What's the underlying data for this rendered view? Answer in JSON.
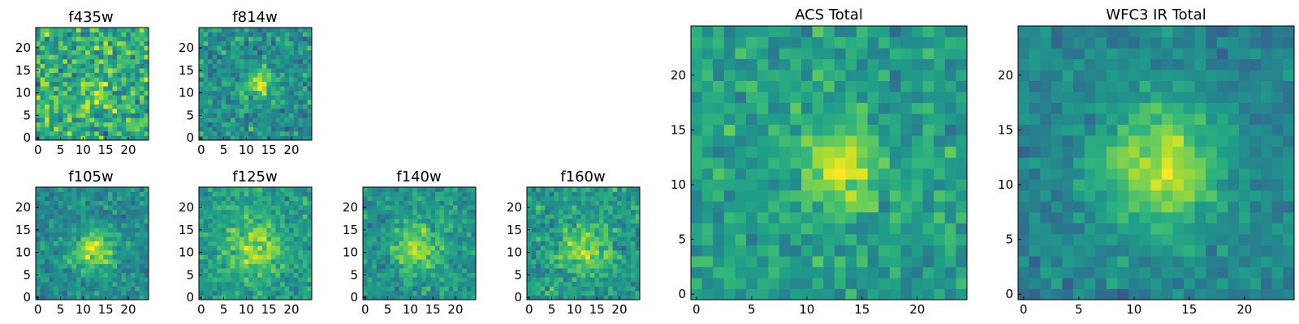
{
  "chart_data": [
    {
      "type": "heatmap",
      "title": "f435w",
      "x_ticks": [
        0,
        5,
        10,
        15,
        20
      ],
      "y_ticks": [
        0,
        5,
        10,
        15,
        20
      ],
      "xlim": [
        0,
        25
      ],
      "ylim": [
        0,
        25
      ],
      "grid_size": 25,
      "peak": [
        13.5,
        11
      ],
      "sigma": 2.5,
      "amplitude": 0.15,
      "noise": 0.28,
      "base": 0.62,
      "seed": 11,
      "colormap": "viridis",
      "grid": false
    },
    {
      "type": "heatmap",
      "title": "f814w",
      "x_ticks": [
        0,
        5,
        10,
        15,
        20
      ],
      "y_ticks": [
        0,
        5,
        10,
        15,
        20
      ],
      "xlim": [
        0,
        25
      ],
      "ylim": [
        0,
        25
      ],
      "grid_size": 25,
      "peak": [
        13,
        12
      ],
      "sigma": 2.3,
      "amplitude": 0.35,
      "noise": 0.2,
      "base": 0.5,
      "seed": 23,
      "colormap": "viridis",
      "grid": false
    },
    {
      "type": "heatmap",
      "title": "f105w",
      "x_ticks": [
        0,
        5,
        10,
        15,
        20
      ],
      "y_ticks": [
        0,
        5,
        10,
        15,
        20
      ],
      "xlim": [
        0,
        25
      ],
      "ylim": [
        0,
        25
      ],
      "grid_size": 25,
      "peak": [
        12.5,
        10.5
      ],
      "sigma": 3.2,
      "amplitude": 0.4,
      "noise": 0.16,
      "base": 0.48,
      "seed": 37,
      "colormap": "viridis",
      "grid": false
    },
    {
      "type": "heatmap",
      "title": "f125w",
      "x_ticks": [
        0,
        5,
        10,
        15,
        20
      ],
      "y_ticks": [
        0,
        5,
        10,
        15,
        20
      ],
      "xlim": [
        0,
        25
      ],
      "ylim": [
        0,
        25
      ],
      "grid_size": 25,
      "peak": [
        12,
        11
      ],
      "sigma": 4.2,
      "amplitude": 0.3,
      "noise": 0.16,
      "base": 0.55,
      "seed": 41,
      "colormap": "viridis",
      "grid": false
    },
    {
      "type": "heatmap",
      "title": "f140w",
      "x_ticks": [
        0,
        5,
        10,
        15,
        20
      ],
      "y_ticks": [
        0,
        5,
        10,
        15,
        20
      ],
      "xlim": [
        0,
        25
      ],
      "ylim": [
        0,
        25
      ],
      "grid_size": 25,
      "peak": [
        11.5,
        11
      ],
      "sigma": 3.5,
      "amplitude": 0.35,
      "noise": 0.16,
      "base": 0.52,
      "seed": 53,
      "colormap": "viridis",
      "grid": false
    },
    {
      "type": "heatmap",
      "title": "f160w",
      "x_ticks": [
        0,
        5,
        10,
        15,
        20
      ],
      "y_ticks": [
        0,
        5,
        10,
        15,
        20
      ],
      "xlim": [
        0,
        25
      ],
      "ylim": [
        0,
        25
      ],
      "grid_size": 25,
      "peak": [
        12,
        11
      ],
      "sigma": 3.8,
      "amplitude": 0.3,
      "noise": 0.18,
      "base": 0.54,
      "seed": 67,
      "colormap": "viridis",
      "grid": false
    },
    {
      "type": "heatmap",
      "title": "ACS Total",
      "x_ticks": [
        0,
        5,
        10,
        15,
        20
      ],
      "y_ticks": [
        0,
        5,
        10,
        15,
        20
      ],
      "xlim": [
        0,
        25
      ],
      "ylim": [
        0,
        25
      ],
      "grid_size": 25,
      "peak": [
        13,
        11.5
      ],
      "sigma": 2.4,
      "amplitude": 0.38,
      "noise": 0.16,
      "base": 0.56,
      "seed": 79,
      "colormap": "viridis",
      "grid": false
    },
    {
      "type": "heatmap",
      "title": "WFC3 IR Total",
      "x_ticks": [
        0,
        5,
        10,
        15,
        20
      ],
      "y_ticks": [
        0,
        5,
        10,
        15,
        20
      ],
      "xlim": [
        0,
        25
      ],
      "ylim": [
        0,
        25
      ],
      "grid_size": 25,
      "peak": [
        12.5,
        11.5
      ],
      "sigma": 3.8,
      "amplitude": 0.45,
      "noise": 0.12,
      "base": 0.45,
      "seed": 97,
      "colormap": "viridis",
      "grid": false
    }
  ]
}
